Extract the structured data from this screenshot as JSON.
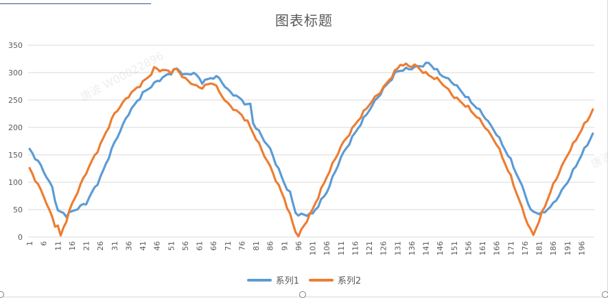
{
  "title": "图表标题",
  "watermark_text": "唐波 W00022896",
  "watermark_text_2": "唐波",
  "colors": {
    "series1": "#5B9BD5",
    "series2": "#ED7D31",
    "grid": "#d9d9d9",
    "text": "#595959"
  },
  "chart_data": {
    "type": "line",
    "title": "图表标题",
    "xlabel": "",
    "ylabel": "",
    "ylim": [
      0,
      350
    ],
    "yticks": [
      0,
      50,
      100,
      150,
      200,
      250,
      300,
      350
    ],
    "x_tick_labels": [
      "1",
      "6",
      "11",
      "16",
      "21",
      "26",
      "31",
      "36",
      "41",
      "46",
      "51",
      "56",
      "61",
      "66",
      "71",
      "76",
      "81",
      "86",
      "91",
      "96",
      "101",
      "106",
      "111",
      "116",
      "121",
      "126",
      "131",
      "136",
      "141",
      "146",
      "151",
      "156",
      "161",
      "166",
      "171",
      "176",
      "181",
      "186",
      "191",
      "196"
    ],
    "x_count": 200,
    "grid": "horizontal",
    "legend_position": "bottom",
    "series": [
      {
        "name": "系列1",
        "color": "#5B9BD5",
        "anchors": [
          [
            1,
            160
          ],
          [
            5,
            130
          ],
          [
            9,
            90
          ],
          [
            11,
            48
          ],
          [
            14,
            40
          ],
          [
            21,
            62
          ],
          [
            26,
            108
          ],
          [
            31,
            172
          ],
          [
            36,
            226
          ],
          [
            41,
            262
          ],
          [
            46,
            284
          ],
          [
            51,
            300
          ],
          [
            53,
            307
          ],
          [
            56,
            295
          ],
          [
            59,
            300
          ],
          [
            62,
            283
          ],
          [
            66,
            292
          ],
          [
            68,
            290
          ],
          [
            71,
            268
          ],
          [
            76,
            250
          ],
          [
            78,
            240
          ],
          [
            79,
            243
          ],
          [
            80,
            208
          ],
          [
            86,
            160
          ],
          [
            91,
            98
          ],
          [
            93,
            80
          ],
          [
            95,
            45
          ],
          [
            96,
            40
          ],
          [
            101,
            42
          ],
          [
            106,
            82
          ],
          [
            111,
            145
          ],
          [
            116,
            190
          ],
          [
            121,
            232
          ],
          [
            126,
            270
          ],
          [
            131,
            303
          ],
          [
            136,
            308
          ],
          [
            141,
            315
          ],
          [
            142,
            318
          ],
          [
            146,
            298
          ],
          [
            151,
            280
          ],
          [
            156,
            252
          ],
          [
            161,
            225
          ],
          [
            166,
            188
          ],
          [
            171,
            140
          ],
          [
            176,
            80
          ],
          [
            178,
            48
          ],
          [
            182,
            42
          ],
          [
            186,
            60
          ],
          [
            191,
            100
          ],
          [
            196,
            150
          ],
          [
            200,
            188
          ]
        ]
      },
      {
        "name": "系列2",
        "color": "#ED7D31",
        "anchors": [
          [
            1,
            125
          ],
          [
            6,
            75
          ],
          [
            10,
            22
          ],
          [
            11,
            20
          ],
          [
            12,
            2
          ],
          [
            16,
            60
          ],
          [
            21,
            118
          ],
          [
            26,
            168
          ],
          [
            31,
            225
          ],
          [
            36,
            258
          ],
          [
            41,
            282
          ],
          [
            44,
            298
          ],
          [
            45,
            308
          ],
          [
            47,
            305
          ],
          [
            51,
            302
          ],
          [
            53,
            306
          ],
          [
            56,
            288
          ],
          [
            61,
            272
          ],
          [
            66,
            282
          ],
          [
            68,
            265
          ],
          [
            71,
            243
          ],
          [
            76,
            222
          ],
          [
            78,
            210
          ],
          [
            81,
            180
          ],
          [
            86,
            128
          ],
          [
            91,
            70
          ],
          [
            95,
            10
          ],
          [
            96,
            2
          ],
          [
            101,
            50
          ],
          [
            106,
            110
          ],
          [
            111,
            165
          ],
          [
            116,
            205
          ],
          [
            121,
            242
          ],
          [
            126,
            272
          ],
          [
            131,
            308
          ],
          [
            132,
            315
          ],
          [
            136,
            312
          ],
          [
            137,
            314
          ],
          [
            141,
            298
          ],
          [
            146,
            285
          ],
          [
            151,
            256
          ],
          [
            156,
            236
          ],
          [
            161,
            208
          ],
          [
            166,
            170
          ],
          [
            171,
            110
          ],
          [
            176,
            38
          ],
          [
            178,
            12
          ],
          [
            179,
            4
          ],
          [
            181,
            30
          ],
          [
            186,
            95
          ],
          [
            191,
            150
          ],
          [
            196,
            196
          ],
          [
            199,
            222
          ],
          [
            200,
            232
          ]
        ]
      }
    ]
  }
}
